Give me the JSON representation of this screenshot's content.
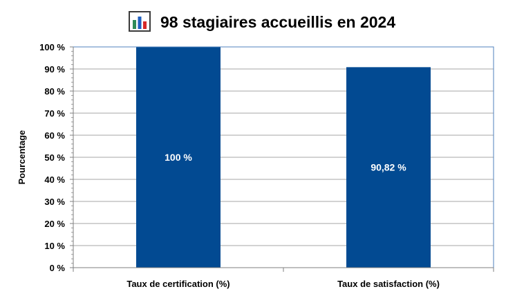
{
  "chart_data": {
    "type": "bar",
    "title": "98 stagiaires accueillis en 2024",
    "title_icon": "bar-chart-icon",
    "xlabel": "",
    "ylabel": "Pourcentage",
    "categories": [
      "Taux de certification (%)",
      "Taux de satisfaction (%)"
    ],
    "values": [
      100,
      90.82
    ],
    "data_labels": [
      "100 %",
      "90,82 %"
    ],
    "ylim": [
      0,
      100
    ],
    "yticks": [
      0,
      10,
      20,
      30,
      40,
      50,
      60,
      70,
      80,
      90,
      100
    ],
    "ytick_labels": [
      "0 %",
      "10 %",
      "20 %",
      "30 %",
      "40 %",
      "50 %",
      "60 %",
      "70 %",
      "80 %",
      "90 %",
      "100 %"
    ],
    "grid": true,
    "legend": "none",
    "colors": {
      "bar": "#024A92",
      "grid": "#A6A6A6",
      "plot_border": "#4F81BD",
      "data_label": "#FFFFFF"
    }
  }
}
